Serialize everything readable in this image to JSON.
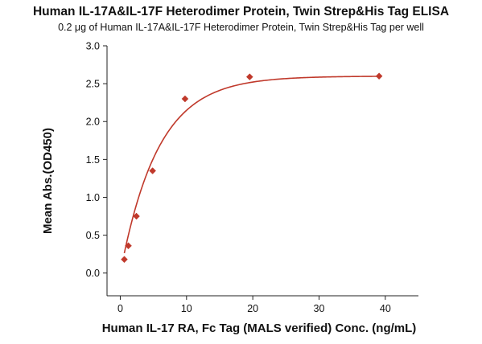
{
  "chart_data": {
    "type": "scatter",
    "title": "Human IL-17A&IL-17F Heterodimer Protein, Twin Strep&His Tag ELISA",
    "subtitle": "0.2 μg of Human IL-17A&IL-17F Heterodimer Protein, Twin Strep&His Tag per well",
    "xlabel": "Human IL-17 RA, Fc Tag (MALS verified) Conc. (ng/mL)",
    "ylabel": "Mean Abs.(OD450)",
    "xlim": [
      -2,
      45
    ],
    "ylim": [
      -0.3,
      3.0
    ],
    "xticks": [
      0,
      10,
      20,
      30,
      40
    ],
    "yticks": [
      0.0,
      0.5,
      1.0,
      1.5,
      2.0,
      2.5,
      3.0
    ],
    "xtick_labels": [
      "0",
      "10",
      "20",
      "30",
      "40"
    ],
    "ytick_labels": [
      "0.0",
      "0.5",
      "1.0",
      "1.5",
      "2.0",
      "2.5",
      "3.0"
    ],
    "grid": false,
    "series": [
      {
        "x": [
          0.61,
          1.22,
          2.44,
          4.88,
          9.77,
          19.53,
          39.06
        ],
        "y": [
          0.18,
          0.36,
          0.75,
          1.35,
          2.3,
          2.59,
          2.6
        ],
        "color": "#c0392b",
        "marker": "diamond",
        "fit_curve": true
      }
    ]
  }
}
